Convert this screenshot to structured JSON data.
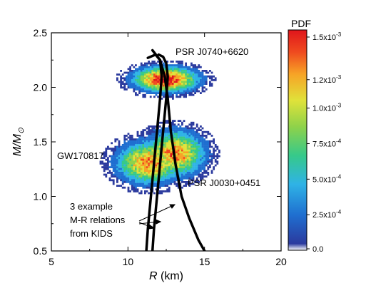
{
  "chart_data": {
    "type": "heatmap",
    "xlabel_var": "R",
    "xlabel_unit": " (km)",
    "ylabel_var": "M/M",
    "ylabel_sub": "⊙",
    "xlim": [
      5,
      20
    ],
    "ylim": [
      0.5,
      2.5
    ],
    "x_ticks": [
      5,
      10,
      15,
      20
    ],
    "x_tick_labels": [
      "5",
      "10",
      "15",
      "20"
    ],
    "y_ticks": [
      0.5,
      1.0,
      1.5,
      2.0,
      2.5
    ],
    "y_tick_labels": [
      "0.5",
      "1.0",
      "1.5",
      "2.0",
      "2.5"
    ],
    "grid": false,
    "colorbar": {
      "title": "PDF",
      "range": [
        0,
        0.00155
      ],
      "ticks": [
        0,
        0.00025,
        0.0005,
        0.00075,
        0.001,
        0.0012,
        0.0015
      ],
      "tick_labels": [
        {
          "base": "0.0",
          "exp": ""
        },
        {
          "base": "2.5x10",
          "exp": "-4"
        },
        {
          "base": "5.0x10",
          "exp": "-4"
        },
        {
          "base": "7.5x10",
          "exp": "-4"
        },
        {
          "base": "1.0x10",
          "exp": "-3"
        },
        {
          "base": "1.2x10",
          "exp": "-3"
        },
        {
          "base": "1.5x10",
          "exp": "-3"
        }
      ],
      "colors": [
        "#ffffff",
        "#2b3a9e",
        "#1f6fd0",
        "#2fb3e6",
        "#36c98a",
        "#8ed24a",
        "#e0e23a",
        "#f7a326",
        "#ef4a1f",
        "#e0151b"
      ]
    },
    "density_regions": [
      {
        "name": "PSR J0740+6620",
        "center_r": 12.4,
        "center_m": 2.08,
        "sigma_r": 1.3,
        "sigma_m": 0.07,
        "peak": 0.0015
      },
      {
        "name": "GW170817",
        "center_r": 11.3,
        "center_m": 1.32,
        "sigma_r": 1.3,
        "sigma_m": 0.12,
        "peak": 0.0012
      },
      {
        "name": "PSR J0030+0451",
        "center_r": 13.0,
        "center_m": 1.4,
        "sigma_r": 1.2,
        "sigma_m": 0.13,
        "peak": 0.0012
      }
    ],
    "series": [
      {
        "r": [
          11.2,
          11.3,
          11.5,
          11.7,
          11.9,
          12.1,
          12.2,
          12.1,
          11.8,
          11.3
        ],
        "m": [
          0.5,
          0.7,
          1.0,
          1.3,
          1.6,
          1.9,
          2.1,
          2.25,
          2.3,
          2.27
        ]
      },
      {
        "r": [
          11.6,
          11.7,
          11.9,
          12.1,
          12.3,
          12.5,
          12.6,
          12.5,
          12.3,
          12.0
        ],
        "m": [
          0.5,
          0.7,
          1.0,
          1.3,
          1.6,
          1.9,
          2.1,
          2.22,
          2.28,
          2.3
        ]
      },
      {
        "r": [
          15.0,
          14.6,
          14.0,
          13.5,
          13.1,
          12.8,
          12.6,
          12.4,
          12.1,
          11.6
        ],
        "m": [
          0.5,
          0.6,
          0.8,
          1.0,
          1.3,
          1.6,
          1.9,
          2.1,
          2.25,
          2.34
        ]
      }
    ],
    "annotations": {
      "psr0740": {
        "text": "PSR J0740+6620"
      },
      "gw": {
        "text": "GW170817"
      },
      "psr0030": {
        "text": "PSR J0030+0451"
      },
      "kids_lines": [
        "3 example",
        "M-R relations",
        "from KIDS"
      ]
    }
  }
}
